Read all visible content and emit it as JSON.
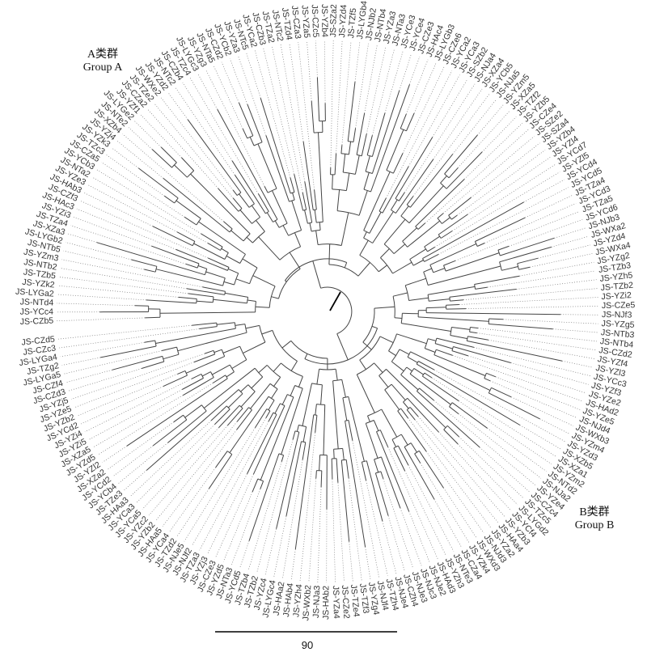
{
  "groups": {
    "a": {
      "cn": "A类群",
      "en": "Group A"
    },
    "b": {
      "cn": "B类群",
      "en": "Group B"
    }
  },
  "scale_bar": {
    "label": "90"
  },
  "leaves": [
    "JS-CZb5",
    "JS-YCc4",
    "JS-NTd4",
    "JS-LYGa2",
    "JS-YZk2",
    "JS-TZb5",
    "JS-NTb2",
    "JS-YZm3",
    "JS-NTb5",
    "JS-LYGb2",
    "JS-XZa3",
    "JS-TZa4",
    "JS-YZi3",
    "JS-HAc3",
    "JS-CZf3",
    "JS-HAb3",
    "JS-YZe3",
    "JS-NTa2",
    "JS-YCb3",
    "JS-CZa5",
    "JS-TZc3",
    "JS-YZk3",
    "JS-YZj4",
    "JS-XZb4",
    "JS-NTe2",
    "JS-LYGe2",
    "JS-YZf1",
    "JS-CZa2",
    "JS-TZe2",
    "JS-WXe2",
    "JS-YZd2",
    "JS-NTc2",
    "JS-CZb4",
    "JS-TZc4",
    "JS-LYGc3",
    "JS-YZg3",
    "JS-NTa5",
    "JS-CZd2",
    "JS-YCb2",
    "JS-YZa3",
    "JS-NTc5",
    "JS-YCa2",
    "JS-CZb3",
    "JS-TZa2",
    "JS-NTc2",
    "JS-TZd4",
    "JS-CZa3",
    "JS-YZa5",
    "JS-CZc5",
    "JS-YZb4",
    "JS-SZa2",
    "JS-YZd4",
    "JS-TZf5",
    "JS-LYGb4",
    "JS-NJb2",
    "JS-NTb4",
    "JS-YZa3",
    "JS-NTa3",
    "JS-YCe3",
    "JS-YCe4",
    "JS-CZe3",
    "JS-HAc4",
    "JS-LYGb3",
    "JS-CZe6",
    "JS-YCa2",
    "JS-YCa3",
    "JS-SZb2",
    "JS-NJa4",
    "JS-XZa4",
    "JS-YCb5",
    "JS-NJa5",
    "JS-YZm5",
    "JS-XZa5",
    "JS-TZf2",
    "JS-YZb5",
    "JS-CZe4",
    "JS-SZe2",
    "JS-SZa4",
    "JS-YZb4",
    "JS-YZl4",
    "JS-YCd7",
    "JS-YZl5",
    "JS-YCd4",
    "JS-YCd5",
    "JS-TZa4",
    "JS-YCd3",
    "JS-TZa5",
    "JS-YCd6",
    "JS-NJb3",
    "JS-WXa2",
    "JS-YZd4",
    "JS-WXa4",
    "JS-YZg2",
    "JS-TZb3",
    "JS-YZh5",
    "JS-TZb2",
    "JS-YZi2",
    "JS-CZe5",
    "JS-NJf3",
    "JS-YZg5",
    "JS-NTb3",
    "JS-NTb4",
    "JS-CZd2",
    "JS-YZf4",
    "JS-YZl3",
    "JS-YCc3",
    "JS-YZf3",
    "JS-YZe2",
    "JS-HAd2",
    "JS-YZe5",
    "JS-NJd4",
    "JS-WXb3",
    "JS-YZm4",
    "JS-YZd3",
    "JS-XZb5",
    "JS-XZa1",
    "JS-YZm2",
    "JS-NTd2",
    "JS-NJa2",
    "JS-YZe4",
    "JS-CZc4",
    "JS-TZc5",
    "JS-LYGd2",
    "JS-YCf4",
    "JS-YZb3",
    "JS-HAa4",
    "JS-YZa2",
    "JS-NJd3",
    "JS-WXd3",
    "JS-YZk4",
    "JS-CZa4",
    "JS-NTe3",
    "JS-YZh3",
    "JS-HAd3",
    "JS-NJe2",
    "JS-NJc3",
    "JS-NJe3",
    "JS-CZh4",
    "JS-NJe4",
    "JS-TZh4",
    "JS-NJf4",
    "JS-YZg4",
    "JS-TZf3",
    "JS-TZe4",
    "JS-CZe2",
    "JS-YZa4",
    "JS-HAb2",
    "JS-NJa3",
    "JS-WXb2",
    "JS-YZh4",
    "JS-HAb4",
    "JS-HAa2",
    "JS-LYGc4",
    "JS-YZc4",
    "JS-TZb2",
    "JS-TZb4",
    "JS-YCd5",
    "JS-NTa3",
    "JS-YZd5",
    "JS-CZe3",
    "JS-YZj3",
    "JS-TZa3",
    "JS-NJf2",
    "JS-NJe5",
    "JS-TZd2",
    "JS-YCa4",
    "JS-HAa5",
    "JS-YZb2",
    "JS-YZc2",
    "JS-YCa5",
    "JS-YCa3",
    "JS-HAa3",
    "JS-TZe3",
    "JS-YCb4",
    "JS-YCd2",
    "JS-XZa2",
    "JS-YZl2",
    "JS-YZd5",
    "JS-XZa5",
    "JS-YZi5",
    "JS-YZi4",
    "JS-YCd2",
    "JS-YZb2",
    "JS-YZe5",
    "JS-YZj5",
    "JS-CZd3",
    "JS-CZf4",
    "JS-LYGa5",
    "JS-TZg2",
    "JS-LYGa4",
    "JS-CZc3",
    "JS-CZd5"
  ]
}
